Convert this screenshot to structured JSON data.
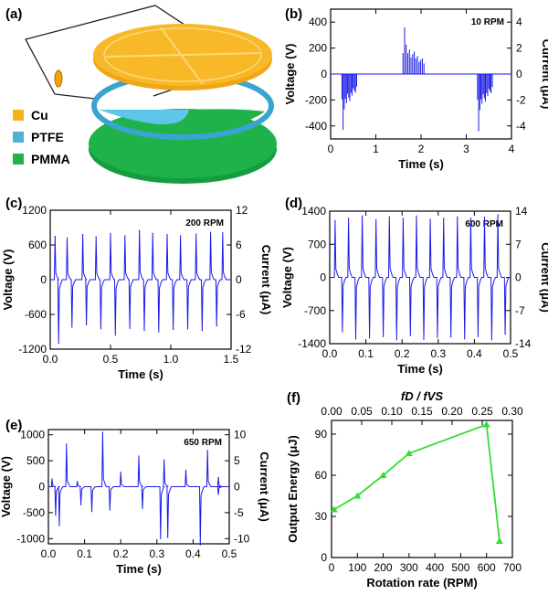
{
  "panel_letters": [
    "(a)",
    "(b)",
    "(c)",
    "(d)",
    "(e)",
    "(f)"
  ],
  "legend_a": [
    {
      "label": "Cu",
      "color": "#f5b21b"
    },
    {
      "label": "PTFE",
      "color": "#4eb3d3"
    },
    {
      "label": "PMMA",
      "color": "#23b14d"
    }
  ],
  "colors": {
    "trace": "#1a1ae6",
    "energy": "#33dd33",
    "cu": "#f5b21b",
    "ptfe": "#5ec6e8",
    "pmma": "#1fb24a",
    "ring": "#63bfe2"
  },
  "chart_data": [
    {
      "id": "b",
      "type": "line",
      "annotation": "10 RPM",
      "xlabel": "Time (s)",
      "ylabel": "Voltage (V)",
      "y2label": "Current (μA)",
      "xlim": [
        0,
        4
      ],
      "ylim": [
        -500,
        500
      ],
      "y2lim": [
        -5,
        5
      ],
      "xticks": [
        "0",
        "1",
        "2",
        "3",
        "4"
      ],
      "yticks": [
        "400",
        "200",
        "0",
        "-200",
        "-400"
      ],
      "y2ticks": [
        "4",
        "2",
        "0",
        "-2",
        "-4"
      ],
      "trace": {
        "base_negative_centers": [
          0.32,
          3.25
        ],
        "base_positive_centers": [
          1.65
        ],
        "bursts": [
          {
            "start": 0.25,
            "end": 0.6,
            "peak": -430,
            "sign": -1
          },
          {
            "start": 1.6,
            "end": 2.1,
            "peak": 360,
            "sign": 1
          },
          {
            "start": 3.25,
            "end": 3.6,
            "peak": -440,
            "sign": -1
          }
        ]
      }
    },
    {
      "id": "c",
      "type": "line",
      "annotation": "200 RPM",
      "xlabel": "Time (s)",
      "ylabel": "Voltage (V)",
      "y2label": "Current (μA)",
      "xlim": [
        0,
        1.5
      ],
      "ylim": [
        -1200,
        1200
      ],
      "y2lim": [
        -12,
        12
      ],
      "xticks": [
        "0.0",
        "0.5",
        "1.0",
        "1.5"
      ],
      "yticks": [
        "1200",
        "600",
        "0",
        "-600",
        "-1200"
      ],
      "y2ticks": [
        "12",
        "6",
        "0",
        "-6",
        "-12"
      ],
      "peaks": {
        "pos_times": [
          0.04,
          0.14,
          0.27,
          0.38,
          0.5,
          0.62,
          0.74,
          0.85,
          0.97,
          1.08,
          1.21,
          1.33,
          1.43
        ],
        "pos_values": [
          750,
          720,
          780,
          740,
          800,
          760,
          850,
          800,
          780,
          760,
          790,
          820,
          810
        ],
        "neg_times": [
          0.07,
          0.18,
          0.3,
          0.42,
          0.54,
          0.66,
          0.78,
          0.9,
          1.02,
          1.14,
          1.26,
          1.38
        ],
        "neg_values": [
          -1100,
          -820,
          -780,
          -850,
          -960,
          -840,
          -880,
          -900,
          -860,
          -850,
          -880,
          -800
        ]
      }
    },
    {
      "id": "d",
      "type": "line",
      "annotation": "600 RPM",
      "xlabel": "Time (s)",
      "ylabel": "Voltage (V)",
      "y2label": "Current (μA)",
      "xlim": [
        0,
        0.5
      ],
      "ylim": [
        -1400,
        1400
      ],
      "y2lim": [
        -14,
        14
      ],
      "xticks": [
        "0.0",
        "0.1",
        "0.2",
        "0.3",
        "0.4",
        "0.5"
      ],
      "yticks": [
        "1400",
        "700",
        "0",
        "-700",
        "-1400"
      ],
      "y2ticks": [
        "14",
        "7",
        "0",
        "-7",
        "-14"
      ],
      "peaks": {
        "pos_times": [
          0.015,
          0.052,
          0.09,
          0.128,
          0.165,
          0.203,
          0.24,
          0.278,
          0.315,
          0.353,
          0.39,
          0.428,
          0.465
        ],
        "pos_values": [
          1200,
          1250,
          1300,
          1220,
          1280,
          1250,
          1300,
          1230,
          1250,
          1280,
          1250,
          1270,
          1320
        ],
        "neg_times": [
          0.035,
          0.072,
          0.11,
          0.148,
          0.185,
          0.223,
          0.26,
          0.298,
          0.335,
          0.373,
          0.41,
          0.448,
          0.485
        ],
        "neg_values": [
          -1150,
          -1300,
          -1280,
          -1250,
          -1320,
          -1230,
          -1310,
          -1270,
          -1260,
          -1300,
          -1250,
          -1320,
          -1200
        ]
      }
    },
    {
      "id": "e",
      "type": "line",
      "annotation": "650 RPM",
      "xlabel": "Time (s)",
      "ylabel": "Voltage (V)",
      "y2label": "Current (μA)",
      "xlim": [
        0,
        0.5
      ],
      "ylim": [
        -1100,
        1100
      ],
      "y2lim": [
        -11,
        11
      ],
      "xticks": [
        "0.0",
        "0.1",
        "0.2",
        "0.3",
        "0.4",
        "0.5"
      ],
      "yticks": [
        "1000",
        "500",
        "0",
        "-500",
        "-1000"
      ],
      "y2ticks": [
        "10",
        "5",
        "0",
        "-5",
        "-10"
      ],
      "peaks": {
        "pos_times": [
          0.01,
          0.05,
          0.08,
          0.15,
          0.2,
          0.25,
          0.32,
          0.38,
          0.44,
          0.47
        ],
        "pos_values": [
          150,
          820,
          100,
          1050,
          280,
          590,
          520,
          320,
          700,
          180
        ],
        "neg_times": [
          0.02,
          0.03,
          0.09,
          0.12,
          0.17,
          0.26,
          0.31,
          0.33,
          0.42,
          0.47
        ],
        "neg_values": [
          -550,
          -750,
          -350,
          -480,
          -450,
          -420,
          -1000,
          -980,
          -1120,
          -150
        ]
      }
    },
    {
      "id": "f",
      "type": "line",
      "title": "",
      "xlabel": "Rotation rate (RPM)",
      "ylabel": "Output Energy (μJ)",
      "x2label": "fD / fVS",
      "xlim": [
        0,
        700
      ],
      "ylim": [
        0,
        100
      ],
      "x2lim": [
        0,
        0.3
      ],
      "xticks": [
        "0",
        "100",
        "200",
        "300",
        "400",
        "500",
        "600",
        "700"
      ],
      "yticks": [
        "90",
        "60",
        "30",
        "0"
      ],
      "x2ticks": [
        "0.00",
        "0.05",
        "0.10",
        "0.15",
        "0.20",
        "0.25",
        "0.30"
      ],
      "series": [
        {
          "x": [
            10,
            100,
            200,
            300,
            600,
            650
          ],
          "y": [
            35,
            45,
            60,
            76,
            97,
            12
          ]
        }
      ]
    }
  ]
}
